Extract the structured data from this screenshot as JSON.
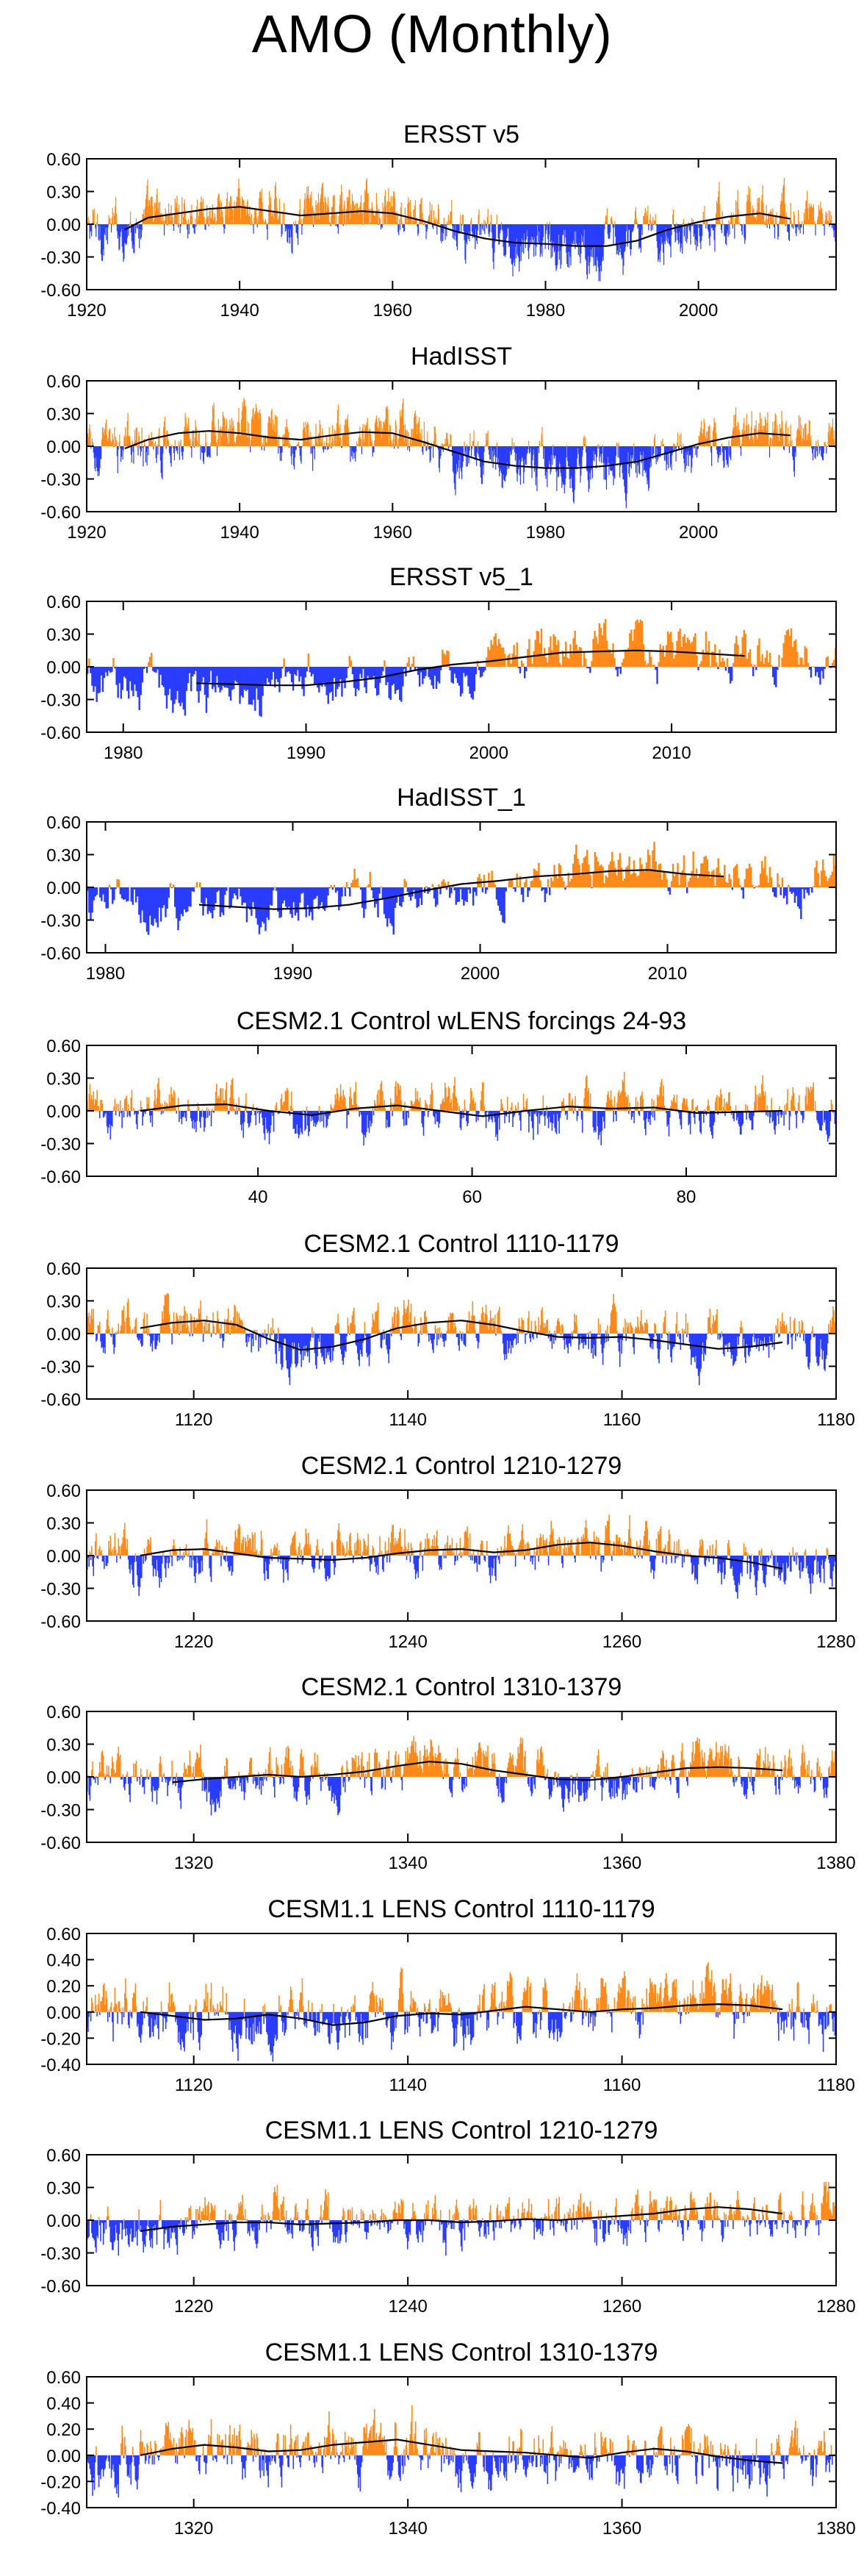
{
  "figure": {
    "title": "AMO (Monthly)",
    "colors": {
      "positive": "#ff8a1a",
      "negative": "#2a3dff",
      "smooth": "#000000",
      "axis": "#000000"
    }
  },
  "chart_data": [
    {
      "type": "bar",
      "title": "ERSST v5",
      "xlim": [
        1920,
        2018
      ],
      "ylim": [
        -0.6,
        0.6
      ],
      "yticks": [
        "0.60",
        "0.30",
        "0.00",
        "-0.30",
        "-0.60"
      ],
      "xticks": [
        1920,
        1940,
        1960,
        1980,
        2000
      ],
      "series": [
        {
          "name": "smoothed",
          "x": [
            1925,
            1928,
            1932,
            1936,
            1940,
            1944,
            1948,
            1952,
            1956,
            1960,
            1964,
            1968,
            1972,
            1976,
            1980,
            1984,
            1988,
            1992,
            1996,
            2000,
            2004,
            2008,
            2012
          ],
          "values": [
            -0.05,
            0.06,
            0.1,
            0.14,
            0.16,
            0.12,
            0.08,
            0.1,
            0.12,
            0.1,
            0.03,
            -0.06,
            -0.13,
            -0.17,
            -0.18,
            -0.2,
            -0.2,
            -0.15,
            -0.05,
            0.02,
            0.07,
            0.1,
            0.05
          ]
        }
      ],
      "anomaly_source": "monthly"
    },
    {
      "type": "bar",
      "title": "HadISST",
      "xlim": [
        1920,
        2018
      ],
      "ylim": [
        -0.6,
        0.6
      ],
      "yticks": [
        "0.60",
        "0.30",
        "0.00",
        "-0.30",
        "-0.60"
      ],
      "xticks": [
        1920,
        1940,
        1960,
        1980,
        2000
      ],
      "series": [
        {
          "name": "smoothed",
          "x": [
            1925,
            1928,
            1932,
            1936,
            1940,
            1944,
            1948,
            1952,
            1956,
            1960,
            1964,
            1968,
            1972,
            1976,
            1980,
            1984,
            1988,
            1992,
            1996,
            2000,
            2004,
            2008,
            2012
          ],
          "values": [
            -0.02,
            0.06,
            0.12,
            0.14,
            0.12,
            0.08,
            0.06,
            0.1,
            0.13,
            0.12,
            0.04,
            -0.05,
            -0.14,
            -0.18,
            -0.2,
            -0.2,
            -0.18,
            -0.14,
            -0.06,
            0.02,
            0.08,
            0.12,
            0.1
          ]
        }
      ]
    },
    {
      "type": "bar",
      "title": "ERSST v5_1",
      "xlim": [
        1978,
        2019
      ],
      "ylim": [
        -0.6,
        0.6
      ],
      "yticks": [
        "0.60",
        "0.30",
        "0.00",
        "-0.30",
        "-0.60"
      ],
      "xticks": [
        1980,
        1990,
        2000,
        2010
      ],
      "series": [
        {
          "name": "smoothed",
          "x": [
            1984,
            1986,
            1988,
            1990,
            1992,
            1994,
            1996,
            1998,
            2000,
            2002,
            2004,
            2006,
            2008,
            2010,
            2012,
            2014
          ],
          "values": [
            -0.15,
            -0.16,
            -0.17,
            -0.17,
            -0.14,
            -0.1,
            -0.03,
            0.02,
            0.05,
            0.09,
            0.13,
            0.14,
            0.15,
            0.14,
            0.12,
            0.1
          ]
        }
      ]
    },
    {
      "type": "bar",
      "title": "HadISST_1",
      "xlim": [
        1979,
        2019
      ],
      "ylim": [
        -0.6,
        0.6
      ],
      "yticks": [
        "0.60",
        "0.30",
        "0.00",
        "-0.30",
        "-0.60"
      ],
      "xticks": [
        1980,
        1990,
        2000,
        2010
      ],
      "series": [
        {
          "name": "smoothed",
          "x": [
            1985,
            1987,
            1989,
            1991,
            1993,
            1995,
            1997,
            1999,
            2001,
            2003,
            2005,
            2007,
            2009,
            2011,
            2013
          ],
          "values": [
            -0.16,
            -0.18,
            -0.2,
            -0.19,
            -0.16,
            -0.1,
            -0.03,
            0.03,
            0.06,
            0.1,
            0.12,
            0.15,
            0.16,
            0.12,
            0.1
          ]
        }
      ]
    },
    {
      "type": "bar",
      "title": "CESM2.1 Control wLENS forcings 24-93",
      "xlim": [
        24,
        94
      ],
      "ylim": [
        -0.6,
        0.6
      ],
      "yticks": [
        "0.60",
        "0.30",
        "0.00",
        "-0.30",
        "-0.60"
      ],
      "xticks": [
        40,
        60,
        80
      ],
      "series": [
        {
          "name": "smoothed",
          "x": [
            29,
            33,
            37,
            41,
            45,
            49,
            53,
            57,
            61,
            65,
            69,
            73,
            77,
            81,
            85,
            89
          ],
          "values": [
            0.0,
            0.05,
            0.06,
            0.0,
            -0.04,
            0.02,
            0.05,
            0.0,
            -0.05,
            0.0,
            0.04,
            0.02,
            0.03,
            -0.02,
            -0.01,
            0.0
          ]
        }
      ]
    },
    {
      "type": "bar",
      "title": "CESM2.1 Control 1110-1179",
      "xlim": [
        1110,
        1180
      ],
      "ylim": [
        -0.6,
        0.6
      ],
      "yticks": [
        "0.60",
        "0.30",
        "0.00",
        "-0.30",
        "-0.60"
      ],
      "xticks": [
        1120,
        1140,
        1160,
        1180
      ],
      "series": [
        {
          "name": "smoothed",
          "x": [
            1115,
            1118,
            1121,
            1124,
            1127,
            1130,
            1133,
            1136,
            1139,
            1142,
            1145,
            1148,
            1151,
            1154,
            1157,
            1160,
            1163,
            1166,
            1169,
            1172,
            1175
          ],
          "values": [
            0.05,
            0.1,
            0.12,
            0.08,
            -0.05,
            -0.15,
            -0.12,
            -0.05,
            0.05,
            0.1,
            0.12,
            0.08,
            0.02,
            -0.03,
            -0.04,
            -0.03,
            -0.06,
            -0.1,
            -0.14,
            -0.12,
            -0.08
          ]
        }
      ]
    },
    {
      "type": "bar",
      "title": "CESM2.1 Control 1210-1279",
      "xlim": [
        1210,
        1280
      ],
      "ylim": [
        -0.6,
        0.6
      ],
      "yticks": [
        "0.60",
        "0.30",
        "0.00",
        "-0.30",
        "-0.60"
      ],
      "xticks": [
        1220,
        1240,
        1260,
        1280
      ],
      "series": [
        {
          "name": "smoothed",
          "x": [
            1215,
            1218,
            1221,
            1224,
            1227,
            1230,
            1233,
            1236,
            1239,
            1242,
            1245,
            1248,
            1251,
            1254,
            1257,
            1260,
            1263,
            1266,
            1269,
            1272,
            1275
          ],
          "values": [
            0.0,
            0.05,
            0.06,
            0.02,
            -0.02,
            -0.03,
            -0.04,
            -0.02,
            0.02,
            0.05,
            0.06,
            0.03,
            0.05,
            0.1,
            0.12,
            0.09,
            0.04,
            0.0,
            -0.02,
            -0.06,
            -0.12
          ]
        }
      ]
    },
    {
      "type": "bar",
      "title": "CESM2.1 Control 1310-1379",
      "xlim": [
        1310,
        1380
      ],
      "ylim": [
        -0.6,
        0.6
      ],
      "yticks": [
        "0.60",
        "0.30",
        "0.00",
        "-0.30",
        "-0.60"
      ],
      "xticks": [
        1320,
        1340,
        1360,
        1380
      ],
      "series": [
        {
          "name": "smoothed",
          "x": [
            1318,
            1321,
            1324,
            1327,
            1330,
            1333,
            1336,
            1339,
            1342,
            1345,
            1348,
            1351,
            1354,
            1357,
            1360,
            1363,
            1366,
            1369,
            1372,
            1375
          ],
          "values": [
            -0.05,
            -0.02,
            0.0,
            0.02,
            0.0,
            0.02,
            0.05,
            0.1,
            0.14,
            0.12,
            0.06,
            0.02,
            -0.02,
            -0.03,
            0.0,
            0.04,
            0.08,
            0.09,
            0.08,
            0.06
          ]
        }
      ]
    },
    {
      "type": "bar",
      "title": "CESM1.1 LENS Control 1110-1179",
      "xlim": [
        1110,
        1180
      ],
      "ylim": [
        -0.4,
        0.6
      ],
      "yticks": [
        "0.60",
        "0.40",
        "0.20",
        "0.00",
        "-0.20",
        "-0.40"
      ],
      "xticks": [
        1120,
        1140,
        1160,
        1180
      ],
      "series": [
        {
          "name": "smoothed",
          "x": [
            1115,
            1118,
            1121,
            1124,
            1127,
            1130,
            1133,
            1136,
            1139,
            1142,
            1145,
            1148,
            1151,
            1154,
            1157,
            1160,
            1163,
            1166,
            1169,
            1172,
            1175
          ],
          "values": [
            0.0,
            -0.03,
            -0.06,
            -0.05,
            -0.02,
            -0.05,
            -0.1,
            -0.08,
            -0.03,
            -0.01,
            -0.02,
            0.01,
            0.04,
            0.02,
            0.0,
            0.02,
            0.03,
            0.05,
            0.06,
            0.05,
            0.02
          ]
        }
      ]
    },
    {
      "type": "bar",
      "title": "CESM1.1 LENS Control 1210-1279",
      "xlim": [
        1210,
        1280
      ],
      "ylim": [
        -0.6,
        0.6
      ],
      "yticks": [
        "0.60",
        "0.30",
        "0.00",
        "-0.30",
        "-0.60"
      ],
      "xticks": [
        1220,
        1240,
        1260,
        1280
      ],
      "series": [
        {
          "name": "smoothed",
          "x": [
            1215,
            1218,
            1221,
            1224,
            1227,
            1230,
            1233,
            1236,
            1239,
            1242,
            1245,
            1248,
            1251,
            1254,
            1257,
            1260,
            1263,
            1266,
            1269,
            1272,
            1275
          ],
          "values": [
            -0.1,
            -0.06,
            -0.04,
            -0.02,
            -0.02,
            -0.04,
            -0.03,
            -0.02,
            0.0,
            0.0,
            -0.02,
            -0.01,
            0.01,
            0.0,
            0.02,
            0.04,
            0.06,
            0.1,
            0.12,
            0.1,
            0.06
          ]
        }
      ]
    },
    {
      "type": "bar",
      "title": "CESM1.1 LENS Control 1310-1379",
      "xlim": [
        1310,
        1380
      ],
      "ylim": [
        -0.4,
        0.6
      ],
      "yticks": [
        "0.60",
        "0.40",
        "0.20",
        "0.00",
        "-0.20",
        "-0.40"
      ],
      "xticks": [
        1320,
        1340,
        1360,
        1380
      ],
      "series": [
        {
          "name": "smoothed",
          "x": [
            1315,
            1318,
            1321,
            1324,
            1327,
            1330,
            1333,
            1336,
            1339,
            1342,
            1345,
            1348,
            1351,
            1354,
            1357,
            1360,
            1363,
            1366,
            1369,
            1372,
            1375
          ],
          "values": [
            0.0,
            0.05,
            0.08,
            0.06,
            0.03,
            0.04,
            0.08,
            0.1,
            0.12,
            0.08,
            0.04,
            0.03,
            0.02,
            0.0,
            -0.02,
            0.02,
            0.05,
            0.03,
            -0.01,
            -0.04,
            -0.06
          ]
        }
      ]
    }
  ]
}
